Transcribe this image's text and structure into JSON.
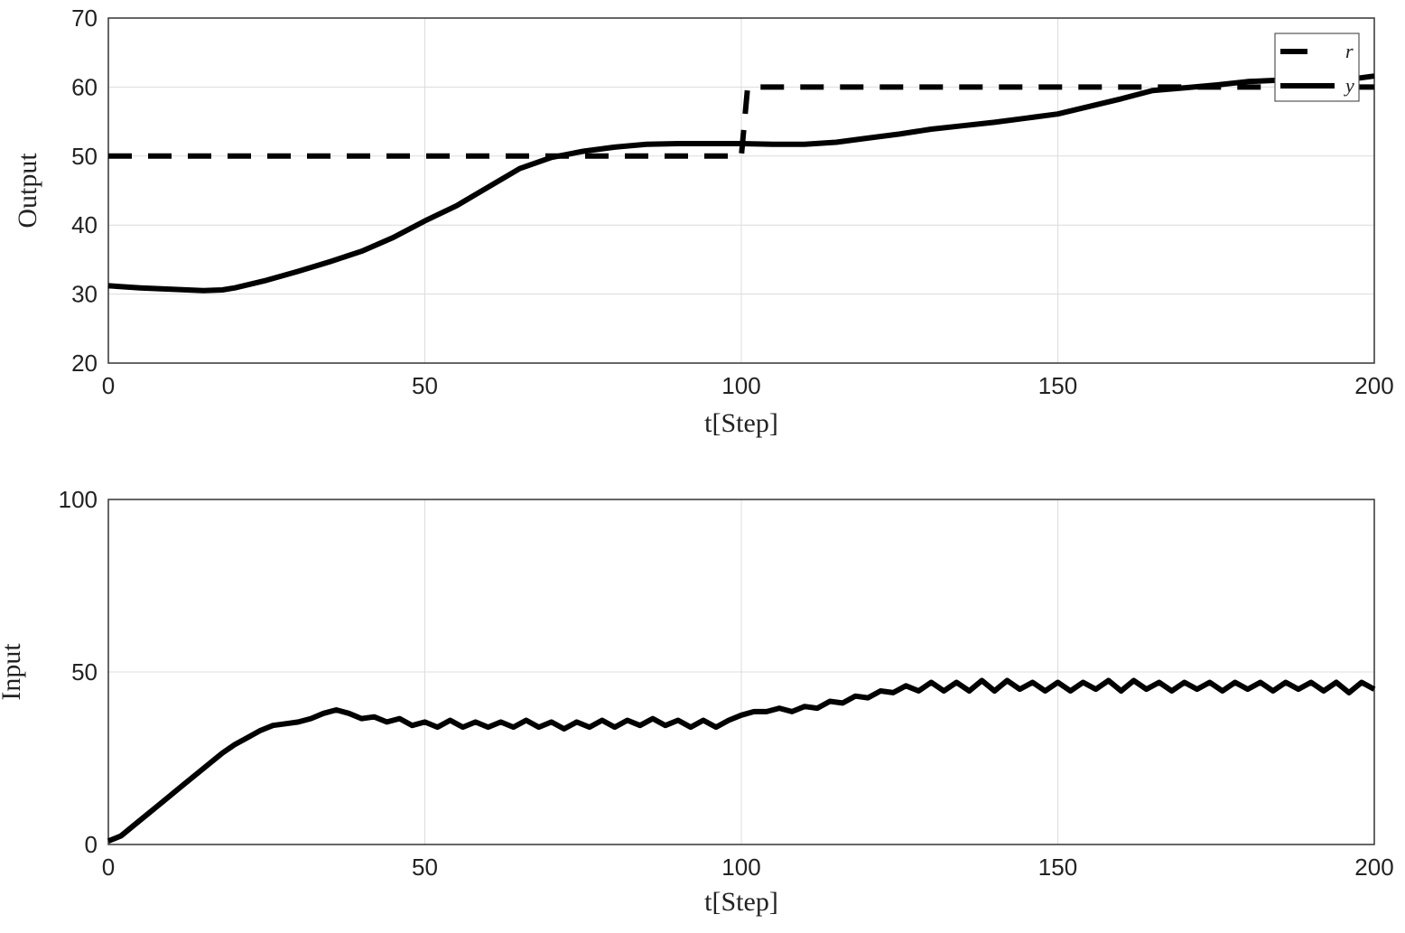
{
  "chart_data": [
    {
      "type": "line",
      "xlabel": "t[Step]",
      "ylabel": "Output",
      "xlim": [
        0,
        200
      ],
      "ylim": [
        20,
        70
      ],
      "xticks": [
        0,
        50,
        100,
        150,
        200
      ],
      "yticks": [
        20,
        30,
        40,
        50,
        60,
        70
      ],
      "grid": true,
      "legend": "top-right",
      "series": [
        {
          "name": "r",
          "style": "dashed",
          "color": "#000000",
          "x": [
            0,
            100,
            101,
            200
          ],
          "y": [
            50,
            50,
            60,
            60
          ]
        },
        {
          "name": "y",
          "style": "solid",
          "color": "#000000",
          "x": [
            0,
            5,
            10,
            15,
            18,
            20,
            25,
            30,
            35,
            40,
            45,
            50,
            55,
            60,
            65,
            70,
            75,
            80,
            85,
            90,
            95,
            100,
            105,
            110,
            115,
            120,
            125,
            130,
            135,
            140,
            145,
            150,
            155,
            160,
            165,
            170,
            175,
            180,
            185,
            190,
            195,
            200
          ],
          "y": [
            31.2,
            30.9,
            30.7,
            30.5,
            30.6,
            30.9,
            32,
            33.3,
            34.7,
            36.2,
            38.2,
            40.6,
            42.8,
            45.5,
            48.2,
            49.8,
            50.7,
            51.3,
            51.7,
            51.8,
            51.8,
            51.8,
            51.7,
            51.7,
            52,
            52.6,
            53.2,
            53.9,
            54.4,
            54.9,
            55.5,
            56.1,
            57.2,
            58.3,
            59.5,
            59.9,
            60.3,
            60.8,
            61,
            61,
            61,
            61.6
          ]
        }
      ]
    },
    {
      "type": "line",
      "xlabel": "t[Step]",
      "ylabel": "Input",
      "xlim": [
        0,
        200
      ],
      "ylim": [
        0,
        100
      ],
      "xticks": [
        0,
        50,
        100,
        150,
        200
      ],
      "yticks": [
        0,
        50,
        100
      ],
      "grid": true,
      "series": [
        {
          "style": "solid",
          "color": "#000000",
          "x_start": 0,
          "x_step": 2,
          "y": [
            1,
            2.5,
            5.5,
            8.5,
            11.5,
            14.5,
            17.5,
            20.5,
            23.5,
            26.5,
            29,
            31,
            33,
            34.5,
            35,
            35.5,
            36.5,
            38,
            39,
            38,
            36.5,
            37,
            35.5,
            36.5,
            34.5,
            35.5,
            34,
            36,
            34,
            35.5,
            34,
            35.5,
            34,
            36,
            34,
            35.5,
            33.5,
            35.5,
            34,
            36,
            34,
            36,
            34.5,
            36.5,
            34.5,
            36,
            34,
            36,
            34,
            36,
            37.5,
            38.5,
            38.5,
            39.5,
            38.5,
            40,
            39.5,
            41.5,
            41,
            43,
            42.5,
            44.5,
            44,
            46,
            44.5,
            47,
            44.5,
            47,
            44.5,
            47.5,
            44.5,
            47.5,
            45,
            47,
            44.5,
            47,
            44.5,
            47,
            45,
            47.5,
            44.5,
            47.5,
            45,
            47,
            44.5,
            47,
            45,
            47,
            44.5,
            47,
            45,
            47,
            44.5,
            47,
            45,
            47,
            44.5,
            47,
            44,
            47,
            45
          ]
        }
      ]
    }
  ]
}
